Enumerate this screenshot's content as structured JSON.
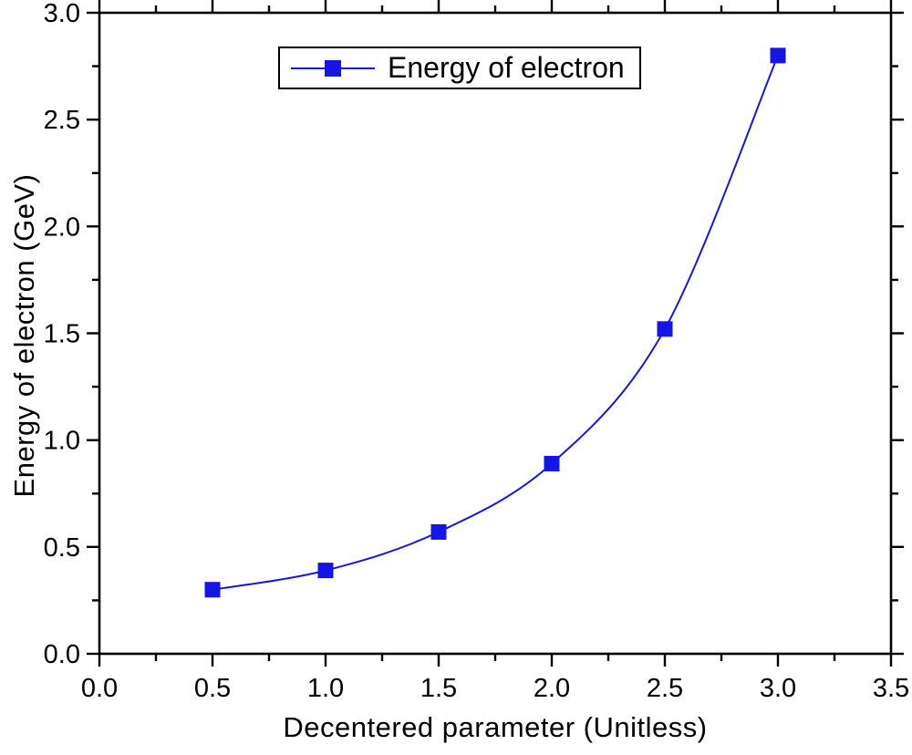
{
  "figure": {
    "background": "#ffffff",
    "axis_color": "#000000"
  },
  "chart_data": {
    "type": "line",
    "title": "",
    "xlabel": "Decentered parameter (Unitless)",
    "ylabel": "Energy of electron (GeV)",
    "xlim": [
      0.0,
      3.5
    ],
    "ylim": [
      0.0,
      3.0
    ],
    "x_major_ticks": [
      0.0,
      0.5,
      1.0,
      1.5,
      2.0,
      2.5,
      3.0,
      3.5
    ],
    "x_tick_labels": [
      "0.0",
      "0.5",
      "1.0",
      "1.5",
      "2.0",
      "2.5",
      "3.0",
      "3.5"
    ],
    "y_major_ticks": [
      0.0,
      0.5,
      1.0,
      1.5,
      2.0,
      2.5,
      3.0
    ],
    "y_tick_labels": [
      "0.0",
      "0.5",
      "1.0",
      "1.5",
      "2.0",
      "2.5",
      "3.0"
    ],
    "minor_tick_interval": 0.25,
    "grid": false,
    "frame": true,
    "tick_direction": "out",
    "legend_position": "top-center-inside",
    "series": [
      {
        "name": "Energy of electron",
        "x": [
          0.5,
          1.0,
          1.5,
          2.0,
          2.5,
          3.0
        ],
        "y": [
          0.3,
          0.39,
          0.57,
          0.89,
          1.52,
          2.8
        ],
        "color": "#1515e6",
        "marker": "square",
        "line_style": "spline"
      }
    ]
  },
  "legend": {
    "entry_label": "Energy of electron"
  }
}
